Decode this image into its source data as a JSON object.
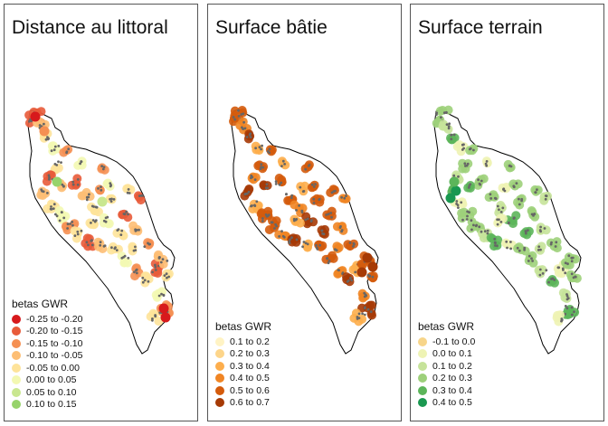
{
  "panels": [
    {
      "title": "Distance au littoral",
      "legend_title": "betas GWR",
      "classes": [
        {
          "label": "-0.25 to -0.20",
          "color": "#d7191c"
        },
        {
          "label": "-0.20 to -0.15",
          "color": "#e85b3a"
        },
        {
          "label": "-0.15 to -0.10",
          "color": "#f59053"
        },
        {
          "label": "-0.10 to -0.05",
          "color": "#fdbe74"
        },
        {
          "label": "-0.05 to 0.00",
          "color": "#fee39a"
        },
        {
          "label": "0.00 to 0.05",
          "color": "#f3f8b2"
        },
        {
          "label": "0.05 to 0.10",
          "color": "#c9e78f"
        },
        {
          "label": "0.10 to 0.15",
          "color": "#97d36b"
        }
      ]
    },
    {
      "title": "Surface bâtie",
      "legend_title": "betas GWR",
      "classes": [
        {
          "label": "0.1 to 0.2",
          "color": "#fff3c4"
        },
        {
          "label": "0.2 to 0.3",
          "color": "#fdd58a"
        },
        {
          "label": "0.3 to 0.4",
          "color": "#fdae4d"
        },
        {
          "label": "0.4 to 0.5",
          "color": "#f08524"
        },
        {
          "label": "0.5 to 0.6",
          "color": "#d45b0c"
        },
        {
          "label": "0.6 to 0.7",
          "color": "#a63a05"
        }
      ]
    },
    {
      "title": "Surface terrain",
      "legend_title": "betas GWR",
      "classes": [
        {
          "label": "-0.1 to 0.0",
          "color": "#f7d58a"
        },
        {
          "label": "0.0 to 0.1",
          "color": "#eef3b4"
        },
        {
          "label": "0.1 to 0.2",
          "color": "#c6e39a"
        },
        {
          "label": "0.2 to 0.3",
          "color": "#9dd07a"
        },
        {
          "label": "0.3 to 0.4",
          "color": "#5cb55a"
        },
        {
          "label": "0.4 to 0.5",
          "color": "#1a9850"
        }
      ]
    }
  ]
}
